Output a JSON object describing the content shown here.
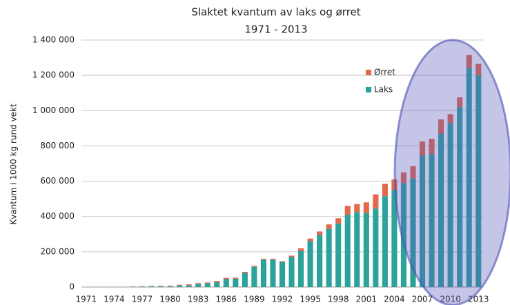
{
  "chart_data": {
    "type": "stacked_bar",
    "title": "Slaktet kvantum av laks og ørret",
    "subtitle": "1971 - 2013",
    "y_label": "Kvantum i 1000 kg rund vekt",
    "categories": [
      "1971",
      null,
      null,
      "1974",
      null,
      null,
      "1977",
      null,
      null,
      "1980",
      null,
      null,
      "1983",
      null,
      null,
      "1986",
      null,
      null,
      "1989",
      null,
      null,
      "1992",
      null,
      null,
      "1995",
      null,
      null,
      "1998",
      null,
      null,
      "2001",
      null,
      null,
      "2004",
      null,
      null,
      "2007",
      null,
      null,
      "2010",
      null,
      null,
      "2013"
    ],
    "series": [
      {
        "name": "Laks",
        "color": "#2ba39a",
        "values": [
          0,
          0,
          0,
          0,
          1000,
          1500,
          2000,
          4000,
          4500,
          4300,
          8400,
          10300,
          17000,
          22000,
          28000,
          45000,
          47000,
          80000,
          115000,
          155000,
          155000,
          142000,
          170000,
          205000,
          260000,
          295000,
          330000,
          360000,
          410000,
          425000,
          420000,
          445000,
          515000,
          550000,
          590000,
          615000,
          745000,
          755000,
          870000,
          930000,
          1020000,
          1240000,
          1200000
        ]
      },
      {
        "name": "Ørret",
        "color": "#e4684b",
        "values": [
          0,
          0,
          0,
          0,
          500,
          1500,
          2000,
          2000,
          2500,
          3600,
          4300,
          5100,
          5400,
          4000,
          7000,
          7000,
          6000,
          6000,
          5000,
          5000,
          5000,
          5000,
          8000,
          15000,
          15000,
          20000,
          25000,
          30000,
          50000,
          45000,
          60000,
          80000,
          70000,
          60000,
          60000,
          70000,
          80000,
          85000,
          80000,
          50000,
          55000,
          75000,
          65000
        ]
      }
    ],
    "ylim": [
      0,
      1400000
    ],
    "yticks": [
      0,
      {
        "value": 200000,
        "label": "200 000"
      },
      {
        "value": 400000,
        "label": "400 000"
      },
      {
        "value": 600000,
        "label": "600 000"
      },
      {
        "value": 800000,
        "label": "800 000"
      },
      {
        "value": 1000000,
        "label": "1 000 000"
      },
      {
        "value": 1200000,
        "label": "1 200 000"
      },
      {
        "value": 1400000,
        "label": "1 400 000"
      }
    ],
    "grid": true
  }
}
